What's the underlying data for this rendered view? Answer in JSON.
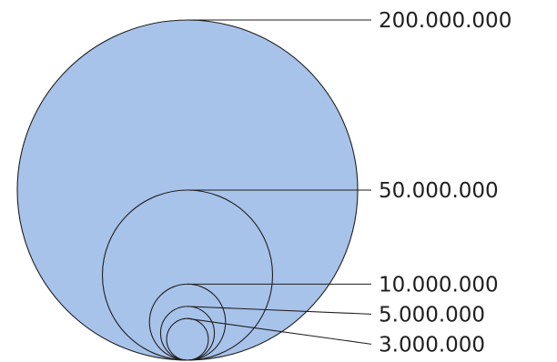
{
  "chart_data": {
    "type": "nested-bubble",
    "values": [
      200000000,
      50000000,
      10000000,
      5000000,
      3000000
    ],
    "labels": [
      "200.000.000",
      "50.000.000",
      "10.000.000",
      "5.000.000",
      "3.000.000"
    ],
    "fill_color": "#a8c3ea",
    "stroke_color": "#1f1f1f"
  }
}
